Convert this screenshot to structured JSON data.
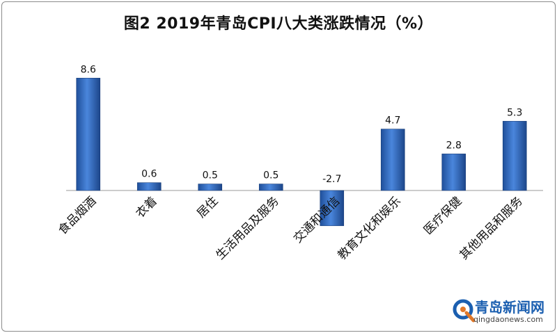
{
  "chart_data": {
    "type": "bar",
    "title": "图2 2019年青岛CPI八大类涨跌情况（%）",
    "categories": [
      "食品烟酒",
      "衣着",
      "居住",
      "生活用品及服务",
      "交通和通信",
      "教育文化和娱乐",
      "医疗保健",
      "其他用品和服务"
    ],
    "values": [
      8.6,
      0.6,
      0.5,
      0.5,
      -2.7,
      4.7,
      2.8,
      5.3
    ],
    "value_labels": [
      "8.6",
      "0.6",
      "0.5",
      "0.5",
      "-2.7",
      "4.7",
      "2.8",
      "5.3"
    ],
    "xlabel": "",
    "ylabel": "",
    "ylim": [
      -3,
      10
    ],
    "grid": false,
    "bar_color": "#3a6fc4"
  },
  "watermark": {
    "name": "青岛新闻网",
    "url": "qingdaonews.com"
  }
}
